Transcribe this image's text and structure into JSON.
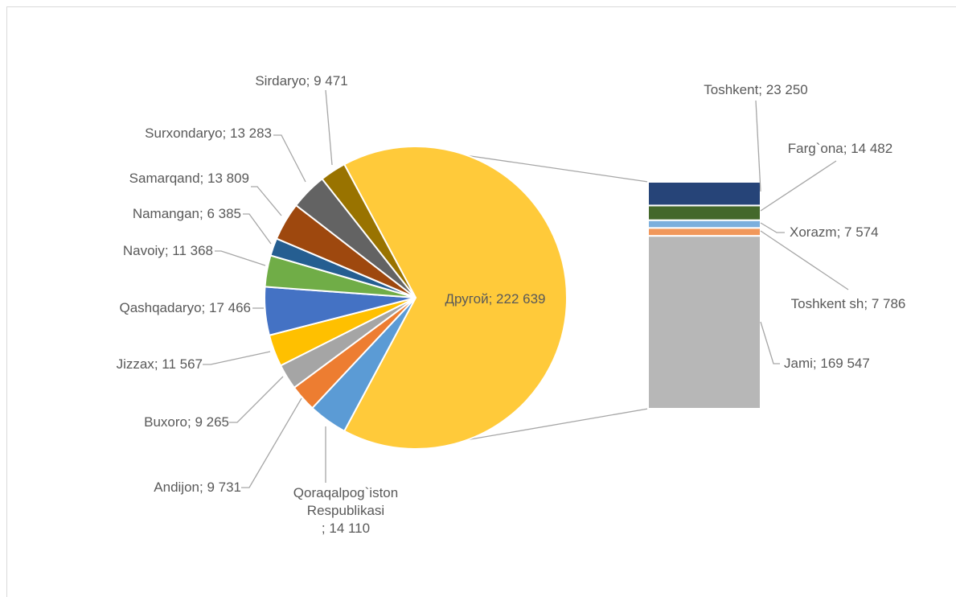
{
  "chart_data": {
    "type": "bar-of-pie",
    "label_separator": "; ",
    "pie": {
      "categories": [
        "Qoraqalpog`iston Respublikasi",
        "Andijon",
        "Buxoro",
        "Jizzax",
        "Qashqadaryo",
        "Navoiy",
        "Namangan",
        "Samarqand",
        "Surxondaryo",
        "Sirdaryo",
        "Другой"
      ],
      "values": [
        14110,
        9731,
        9265,
        11567,
        17466,
        11368,
        6385,
        13809,
        13283,
        9471,
        222639
      ],
      "value_labels": [
        "14 110",
        "9 731",
        "9 265",
        "11 567",
        "17 466",
        "11 368",
        "6 385",
        "13 809",
        "13 283",
        "9 471",
        "222 639"
      ],
      "colors": [
        "#5b9bd5",
        "#ed7d31",
        "#a5a5a5",
        "#ffc000",
        "#4472c4",
        "#70ad47",
        "#255e91",
        "#9e480e",
        "#636363",
        "#997300",
        "#ffca3a"
      ]
    },
    "bar": {
      "categories": [
        "Toshkent",
        "Farg`ona",
        "Xorazm",
        "Toshkent sh",
        "Jami"
      ],
      "values": [
        23250,
        14482,
        7574,
        7786,
        169547
      ],
      "value_labels": [
        "23 250",
        "14 482",
        "7 574",
        "7 786",
        "169 547"
      ],
      "colors": [
        "#264478",
        "#43682b",
        "#7cafdd",
        "#f1975a",
        "#b7b7b7"
      ]
    }
  }
}
